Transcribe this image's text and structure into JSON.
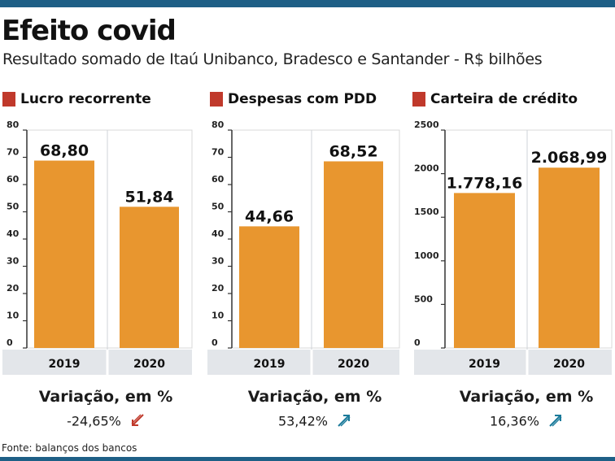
{
  "title": "Efeito covid",
  "subtitle": "Resultado somado de Itaú Unibanco, Bradesco e Santander - R$ bilhões",
  "source": "Fonte: balanços dos bancos",
  "colors": {
    "bar": "#e8962f",
    "accent_square": "#c0392b",
    "top_rule": "#1e5f86",
    "axis_band": "#e3e6ea",
    "down_arrow": "#c0392b",
    "up_arrow": "#1a7a9a"
  },
  "chart_data": [
    {
      "type": "bar",
      "title": "Lucro recorrente",
      "categories": [
        "2019",
        "2020"
      ],
      "values": [
        68.8,
        51.84
      ],
      "value_labels": [
        "68,80",
        "51,84"
      ],
      "ylim": [
        0,
        80
      ],
      "yticks": [
        "0",
        "10",
        "20",
        "30",
        "40",
        "50",
        "60",
        "70",
        "80"
      ],
      "grid": false,
      "variation_label": "Variação, em %",
      "variation_value": "-24,65%",
      "variation_icon": "arrow-down-left-icon"
    },
    {
      "type": "bar",
      "title": "Despesas com PDD",
      "categories": [
        "2019",
        "2020"
      ],
      "values": [
        44.66,
        68.52
      ],
      "value_labels": [
        "44,66",
        "68,52"
      ],
      "ylim": [
        0,
        80
      ],
      "yticks": [
        "0",
        "10",
        "20",
        "30",
        "40",
        "50",
        "60",
        "70",
        "80"
      ],
      "grid": false,
      "variation_label": "Variação, em %",
      "variation_value": "53,42%",
      "variation_icon": "arrow-up-right-icon"
    },
    {
      "type": "bar",
      "title": "Carteira de crédito",
      "categories": [
        "2019",
        "2020"
      ],
      "values": [
        1778.16,
        2068.99
      ],
      "value_labels": [
        "1.778,16",
        "2.068,99"
      ],
      "ylim": [
        0,
        2500
      ],
      "yticks": [
        "0",
        "500",
        "1000",
        "1500",
        "2000",
        "2500"
      ],
      "grid": false,
      "variation_label": "Variação, em %",
      "variation_value": "16,36%",
      "variation_icon": "arrow-up-right-icon"
    }
  ]
}
